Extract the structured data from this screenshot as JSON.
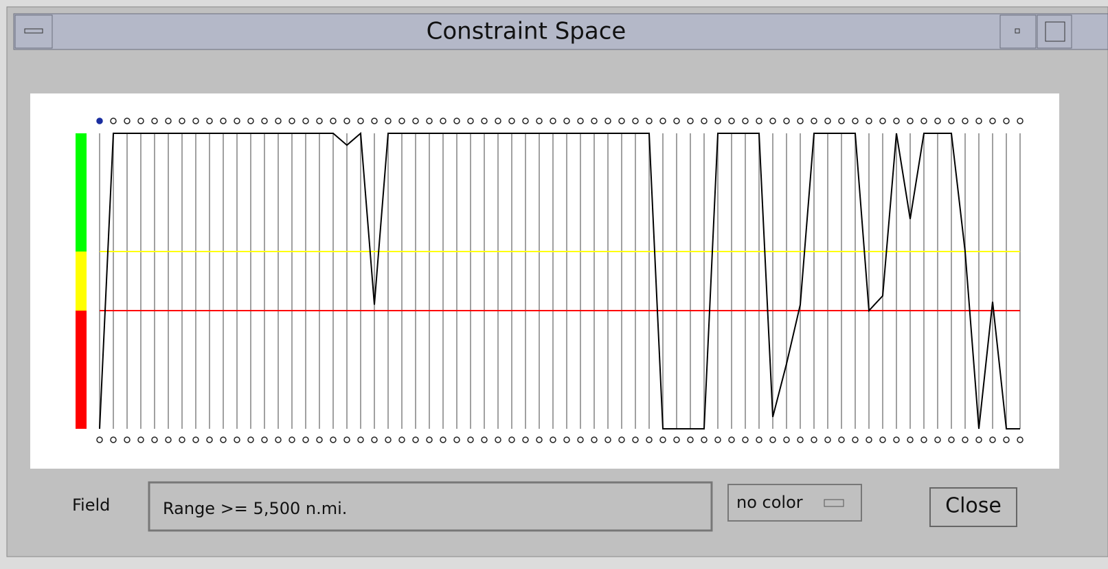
{
  "window": {
    "title": "Constraint Space"
  },
  "plot": {
    "ylim": [
      0,
      100
    ],
    "thresholds": {
      "yellow": 60,
      "red": 40
    },
    "values": [
      0,
      100,
      100,
      100,
      100,
      100,
      100,
      100,
      100,
      100,
      100,
      100,
      100,
      100,
      100,
      100,
      100,
      100,
      96,
      100,
      42,
      100,
      100,
      100,
      100,
      100,
      100,
      100,
      100,
      100,
      100,
      100,
      100,
      100,
      100,
      100,
      100,
      100,
      100,
      100,
      100,
      0,
      0,
      0,
      0,
      100,
      100,
      100,
      100,
      4,
      22,
      42,
      100,
      100,
      100,
      100,
      40,
      45,
      100,
      71,
      100,
      100,
      100,
      60,
      0,
      43,
      0,
      0
    ]
  },
  "controls": {
    "field_label": "Field",
    "field_value": "Range >= 5,500 n.mi.",
    "color_menu": "no color",
    "close_button": "Close"
  }
}
